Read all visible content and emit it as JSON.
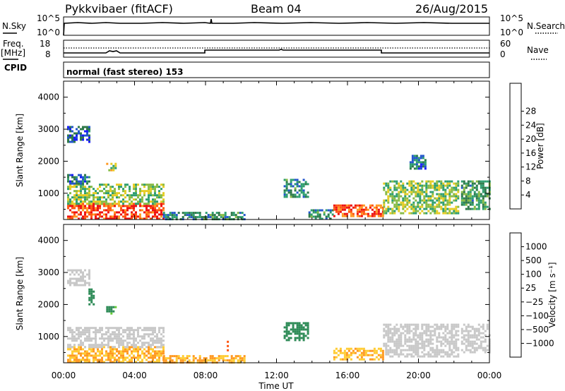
{
  "header": {
    "station": "Pykkvibaer (fitACF)",
    "beam": "Beam 04",
    "date": "26/Aug/2015"
  },
  "params": {
    "nsky_label": "N.Sky",
    "nsky_ticks": [
      "10^5",
      "10^0"
    ],
    "nsearch_label": "N.Search",
    "nsearch_ticks": [
      "10^5",
      "10^0"
    ],
    "freq_label": "Freq.",
    "freq_unit": "[MHz]",
    "freq_ticks": [
      "18",
      "8"
    ],
    "nave_label": "Nave",
    "nave_ticks": [
      "60",
      "0"
    ],
    "cpid_label": "CPID",
    "cpid_text": "normal (fast stereo) 153"
  },
  "chart_data": [
    {
      "type": "heatmap",
      "name": "power-panel",
      "xlabel": "",
      "ylabel": "Slant Range [km]",
      "xlim": [
        0,
        24
      ],
      "ylim": [
        180,
        4500
      ],
      "yticks": [
        1000,
        2000,
        3000,
        4000
      ],
      "colorbar": {
        "label": "Power [dB]",
        "ticks": [
          "4",
          "8",
          "12",
          "16",
          "20",
          "24",
          "28"
        ],
        "range": [
          0,
          32
        ],
        "colors": [
          "#1a1aff",
          "#2255cc",
          "#2f7a4a",
          "#2e9e6f",
          "#88bb44",
          "#e6cc22",
          "#ff9922",
          "#ff5511",
          "#ee1111"
        ]
      },
      "patches": [
        {
          "t0": 0.2,
          "t1": 5.6,
          "r0": 200,
          "r1": 700,
          "level": 28
        },
        {
          "t0": 0.2,
          "t1": 5.6,
          "r0": 700,
          "r1": 1300,
          "level": 16
        },
        {
          "t0": 0.2,
          "t1": 1.4,
          "r0": 1300,
          "r1": 1600,
          "level": 8
        },
        {
          "t0": 0.2,
          "t1": 1.4,
          "r0": 2600,
          "r1": 3100,
          "level": 6
        },
        {
          "t0": 2.4,
          "t1": 2.9,
          "r0": 1700,
          "r1": 1950,
          "level": 18
        },
        {
          "t0": 5.6,
          "t1": 10.2,
          "r0": 220,
          "r1": 420,
          "level": 10
        },
        {
          "t0": 12.4,
          "t1": 13.8,
          "r0": 900,
          "r1": 1450,
          "level": 10
        },
        {
          "t0": 13.8,
          "t1": 15.2,
          "r0": 220,
          "r1": 500,
          "level": 10
        },
        {
          "t0": 15.2,
          "t1": 18.0,
          "r0": 300,
          "r1": 650,
          "level": 27
        },
        {
          "t0": 18.0,
          "t1": 22.2,
          "r0": 350,
          "r1": 1400,
          "level": 16
        },
        {
          "t0": 19.5,
          "t1": 20.4,
          "r0": 1800,
          "r1": 2200,
          "level": 8
        },
        {
          "t0": 22.4,
          "t1": 24.0,
          "r0": 500,
          "r1": 1400,
          "level": 12
        }
      ]
    },
    {
      "type": "heatmap",
      "name": "velocity-panel",
      "xlabel": "Time UT",
      "ylabel": "Slant Range [km]",
      "xlim": [
        0,
        24
      ],
      "ylim": [
        180,
        4500
      ],
      "xticks": [
        "00:00",
        "04:00",
        "08:00",
        "12:00",
        "16:00",
        "20:00",
        "00:00"
      ],
      "yticks": [
        1000,
        2000,
        3000,
        4000
      ],
      "colorbar": {
        "label": "Velocity [m s⁻¹]",
        "ticks": [
          "1000",
          "500",
          "100",
          "25",
          "−25",
          "−100",
          "−500",
          "−1000"
        ],
        "colors": [
          "#1a1aff",
          "#1f5fbf",
          "#2e8b57",
          "#66cc33",
          "#c8c8c8",
          "#ffcc33",
          "#ff9922",
          "#ff5511",
          "#ee1111"
        ]
      },
      "patches": [
        {
          "t0": 0.2,
          "t1": 5.6,
          "r0": 200,
          "r1": 700,
          "level": -100
        },
        {
          "t0": 0.2,
          "t1": 5.6,
          "r0": 700,
          "r1": 1300,
          "level": 0
        },
        {
          "t0": 0.2,
          "t1": 1.4,
          "r0": 2600,
          "r1": 3100,
          "level": 0
        },
        {
          "t0": 1.4,
          "t1": 1.7,
          "r0": 2000,
          "r1": 2500,
          "level": 300
        },
        {
          "t0": 2.4,
          "t1": 2.9,
          "r0": 1700,
          "r1": 1950,
          "level": 150
        },
        {
          "t0": 5.6,
          "t1": 10.2,
          "r0": 220,
          "r1": 420,
          "level": -100
        },
        {
          "t0": 9.2,
          "t1": 9.3,
          "r0": 600,
          "r1": 1000,
          "level": -800
        },
        {
          "t0": 12.4,
          "t1": 13.8,
          "r0": 900,
          "r1": 1450,
          "level": 300
        },
        {
          "t0": 15.2,
          "t1": 18.0,
          "r0": 300,
          "r1": 650,
          "level": -100
        },
        {
          "t0": 18.0,
          "t1": 22.2,
          "r0": 350,
          "r1": 1400,
          "level": 0
        },
        {
          "t0": 22.4,
          "t1": 24.0,
          "r0": 500,
          "r1": 1400,
          "level": 0
        }
      ]
    }
  ]
}
